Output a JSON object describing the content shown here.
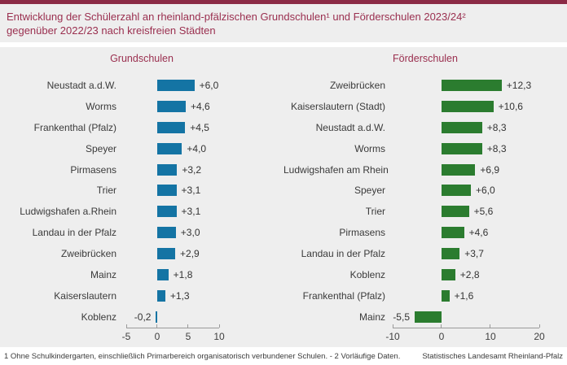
{
  "header": {
    "title_line1": "Entwicklung der Schülerzahl an rheinland-pfälzischen Grundschulen¹ und Förderschulen 2023/24²",
    "title_line2": "gegenüber 2022/23 nach kreisfreien Städten"
  },
  "chart_data": [
    {
      "type": "bar",
      "orientation": "horizontal",
      "title": "Grundschulen",
      "bar_color": "#1474a4",
      "categories": [
        "Neustadt a.d.W.",
        "Worms",
        "Frankenthal (Pfalz)",
        "Speyer",
        "Pirmasens",
        "Trier",
        "Ludwigshafen a.Rhein",
        "Landau in der Pfalz",
        "Zweibrücken",
        "Mainz",
        "Kaiserslautern",
        "Koblenz"
      ],
      "values": [
        6.0,
        4.6,
        4.5,
        4.0,
        3.2,
        3.1,
        3.1,
        3.0,
        2.9,
        1.8,
        1.3,
        -0.2
      ],
      "value_labels": [
        "+6,0",
        "+4,6",
        "+4,5",
        "+4,0",
        "+3,2",
        "+3,1",
        "+3,1",
        "+3,0",
        "+2,9",
        "+1,8",
        "+1,3",
        "-0,2"
      ],
      "xlim": [
        -5,
        10
      ],
      "ticks": [
        -5,
        0,
        5,
        10
      ],
      "tick_labels": [
        "-5",
        "0",
        "5",
        "10"
      ],
      "grid": false,
      "unit": "percent change"
    },
    {
      "type": "bar",
      "orientation": "horizontal",
      "title": "Förderschulen",
      "bar_color": "#2b7c2f",
      "categories": [
        "Zweibrücken",
        "Kaiserslautern (Stadt)",
        "Neustadt a.d.W.",
        "Worms",
        "Ludwigshafen am Rhein",
        "Speyer",
        "Trier",
        "Pirmasens",
        "Landau in der Pfalz",
        "Koblenz",
        "Frankenthal (Pfalz)",
        "Mainz"
      ],
      "values": [
        12.3,
        10.6,
        8.3,
        8.3,
        6.9,
        6.0,
        5.6,
        4.6,
        3.7,
        2.8,
        1.6,
        -5.5
      ],
      "value_labels": [
        "+12,3",
        "+10,6",
        "+8,3",
        "+8,3",
        "+6,9",
        "+6,0",
        "+5,6",
        "+4,6",
        "+3,7",
        "+2,8",
        "+1,6",
        "-5,5"
      ],
      "xlim": [
        -10,
        20
      ],
      "ticks": [
        -10,
        0,
        10,
        20
      ],
      "tick_labels": [
        "-10",
        "0",
        "10",
        "20"
      ],
      "grid": false,
      "unit": "percent change"
    }
  ],
  "footer": {
    "note": "1 Ohne Schulkindergarten, einschließlich Primarbereich organisatorisch verbundener Schulen.  - 2 Vorläufige Daten.",
    "source": "Statistisches Landesamt Rheinland-Pfalz"
  },
  "colors": {
    "accent_maroon": "#8b2a45",
    "title_text": "#9a2f4f",
    "grundschulen_bar": "#1474a4",
    "foerderschulen_bar": "#2b7c2f",
    "panel_background": "#eeeeee"
  }
}
